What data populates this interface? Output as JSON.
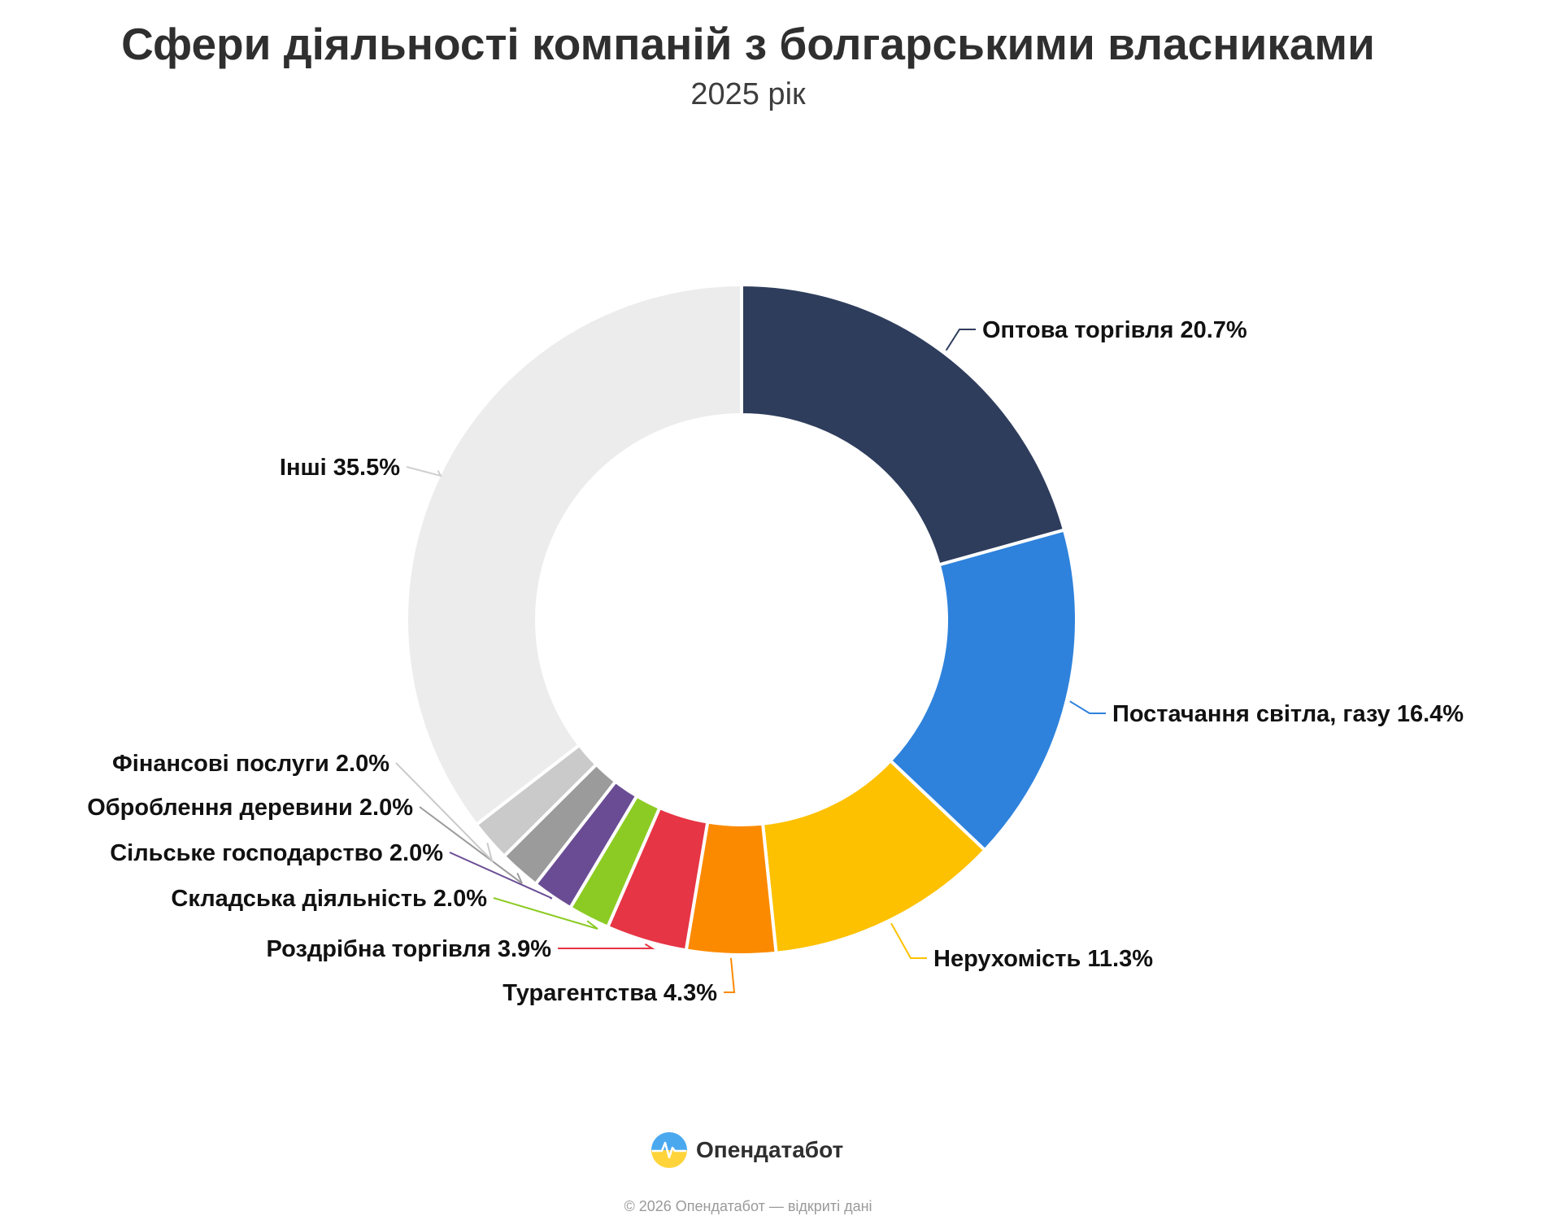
{
  "header": {
    "title": "Сфери діяльності компаній з болгарськими власниками",
    "subtitle": "2025 рік"
  },
  "chart_data": {
    "type": "pie",
    "variant": "donut",
    "title": "Сфери діяльності компаній з болгарськими власниками",
    "subtitle": "2025 рік",
    "unit": "%",
    "slices": [
      {
        "label": "Оптова торгівля",
        "value": 20.7,
        "color": "#2e3d5c"
      },
      {
        "label": "Постачання світла, газу",
        "value": 16.4,
        "color": "#2e82dc"
      },
      {
        "label": "Нерухомість",
        "value": 11.3,
        "color": "#fdc100"
      },
      {
        "label": "Турагентства",
        "value": 4.3,
        "color": "#fb8a00"
      },
      {
        "label": "Роздрібна торгівля",
        "value": 3.9,
        "color": "#e63545"
      },
      {
        "label": "Складська діяльність",
        "value": 2.0,
        "color": "#8ccb24"
      },
      {
        "label": "Сільське господарство",
        "value": 2.0,
        "color": "#6a4c94"
      },
      {
        "label": "Оброблення деревини",
        "value": 2.0,
        "color": "#9b9b9b"
      },
      {
        "label": "Фінансові послуги",
        "value": 2.0,
        "color": "#cacaca"
      },
      {
        "label": "Інші",
        "value": 35.5,
        "color": "#ececec"
      }
    ]
  },
  "brand": {
    "name": "Опендатабот",
    "footer": "© 2026 Опендатабот — відкриті дані"
  }
}
